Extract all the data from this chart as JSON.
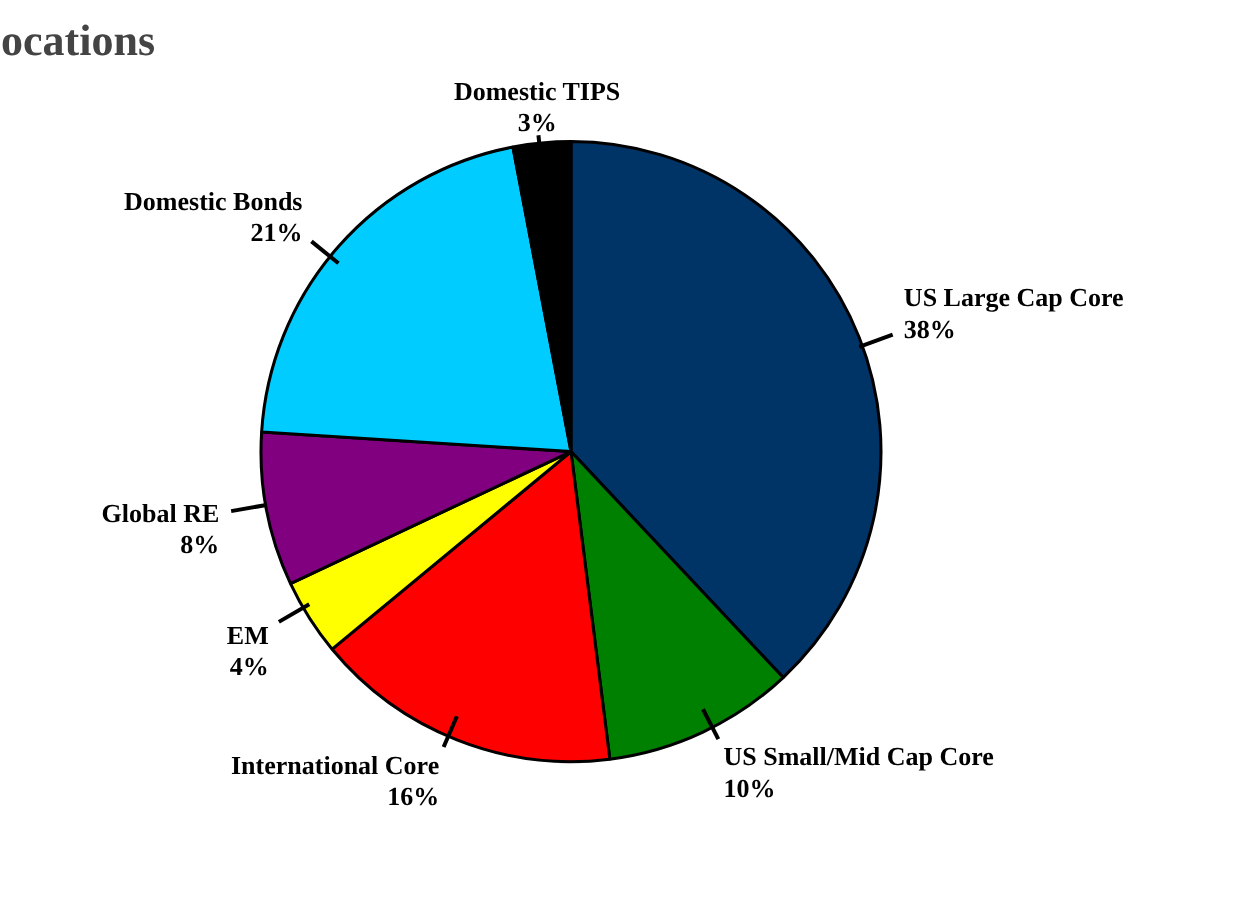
{
  "chart_data": {
    "type": "pie",
    "title": "ocations",
    "categories": [
      "US Large Cap Core",
      "US Small/Mid Cap Core",
      "International Core",
      "EM",
      "Global RE",
      "Domestic Bonds",
      "Domestic TIPS"
    ],
    "values": [
      38,
      10,
      16,
      4,
      8,
      21,
      3
    ],
    "value_labels": [
      "38%",
      "10%",
      "16%",
      "4%",
      "8%",
      "21%",
      "3%"
    ],
    "colors": [
      "#003366",
      "#008000",
      "#ff0000",
      "#ffff00",
      "#800080",
      "#00ccff",
      "#000000"
    ]
  }
}
